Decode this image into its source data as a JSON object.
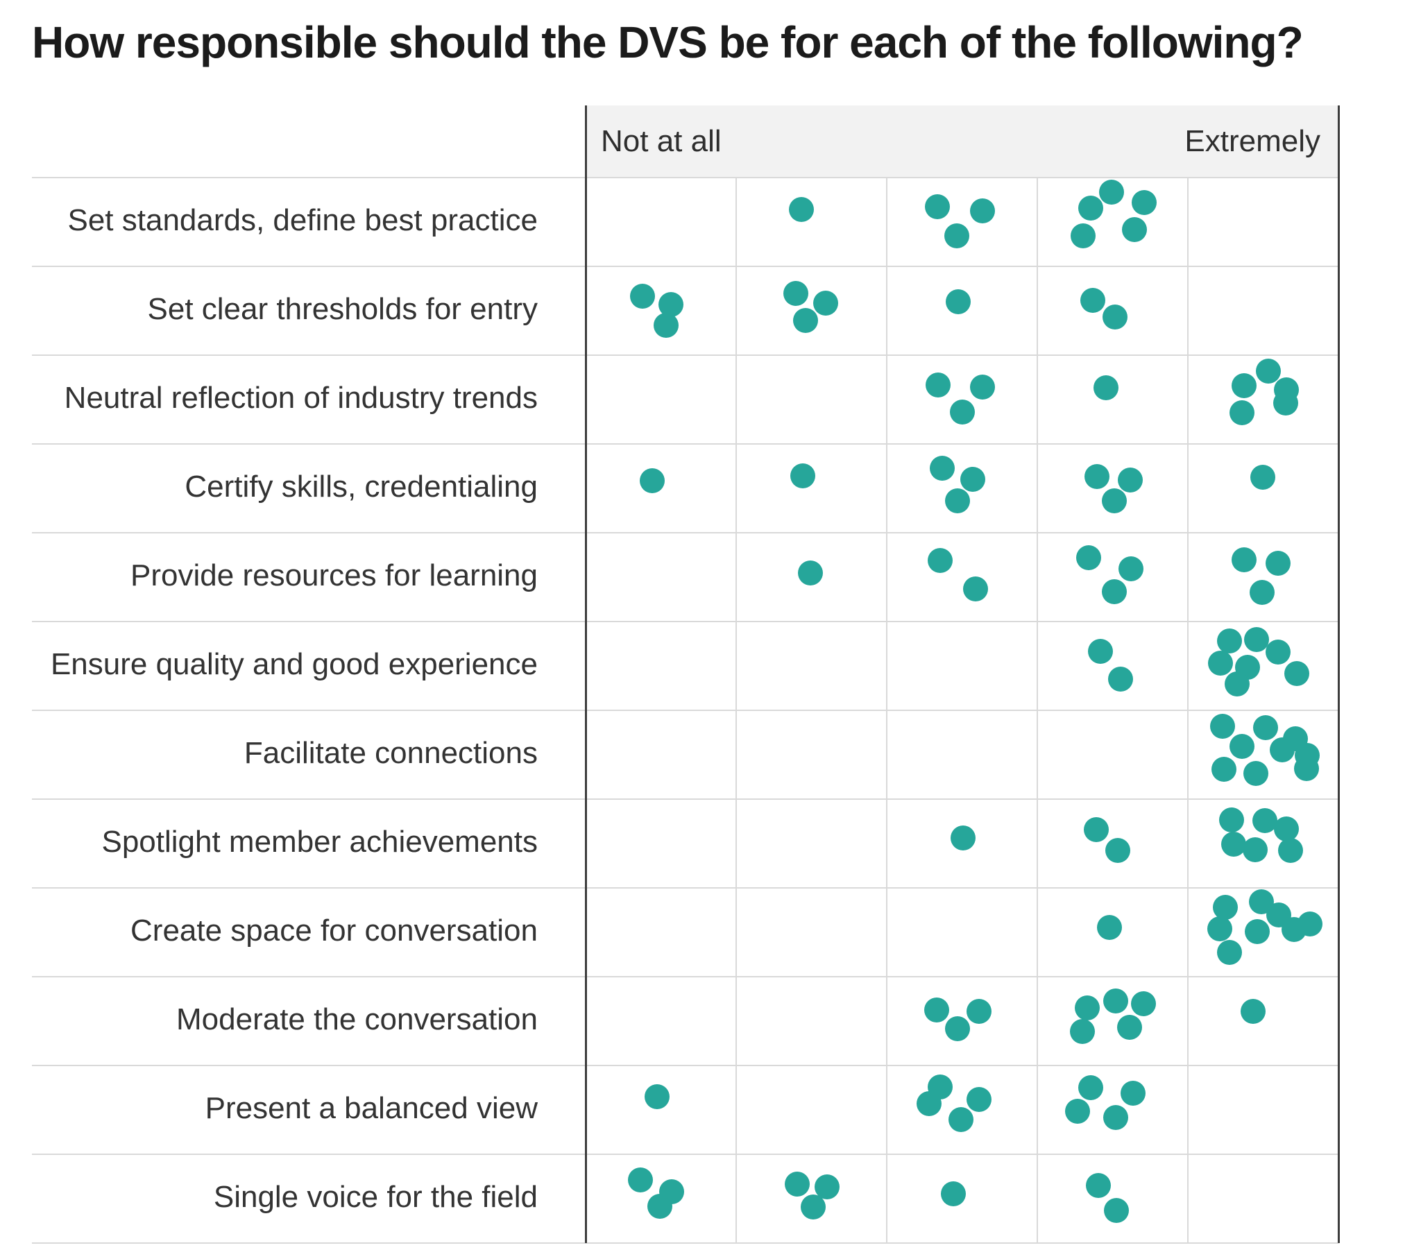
{
  "chart_data": {
    "type": "heatmap",
    "representation": "dot-matrix (each teal dot = one response, jittered within its rating cell)",
    "title": "How responsible should the DVS be for each of the following?",
    "xlabel": "",
    "ylabel": "",
    "legend": "none",
    "grid": true,
    "scale": {
      "levels": 5,
      "left_label": "Not at all",
      "right_label": "Extremely"
    },
    "categories": [
      "Set standards, define best practice",
      "Set clear thresholds for entry",
      "Neutral reflection of industry trends",
      "Certify skills, credentialing",
      "Provide resources for learning",
      "Ensure quality and good experience",
      "Facilitate connections",
      "Spotlight member achievements",
      "Create space for conversation",
      "Moderate the conversation",
      "Present a balanced view",
      "Single voice for the field"
    ],
    "counts": [
      [
        0,
        1,
        3,
        5,
        0
      ],
      [
        3,
        3,
        1,
        2,
        0
      ],
      [
        0,
        0,
        3,
        1,
        5
      ],
      [
        1,
        1,
        3,
        3,
        1
      ],
      [
        0,
        1,
        2,
        3,
        3
      ],
      [
        0,
        0,
        0,
        2,
        7
      ],
      [
        0,
        0,
        0,
        0,
        9
      ],
      [
        0,
        0,
        1,
        2,
        6
      ],
      [
        0,
        0,
        0,
        1,
        8
      ],
      [
        0,
        0,
        3,
        5,
        1
      ],
      [
        1,
        0,
        4,
        4,
        0
      ],
      [
        3,
        3,
        1,
        2,
        0
      ]
    ],
    "respondents_per_category": 9,
    "colors": {
      "dot": "#26a69a",
      "grid_line": "#d9d9d9",
      "axis_line": "#3d3d3d",
      "header_bg": "#f2f2f2",
      "label_text": "#333333",
      "title_text": "#1b1b1b",
      "background": "#ffffff"
    }
  }
}
